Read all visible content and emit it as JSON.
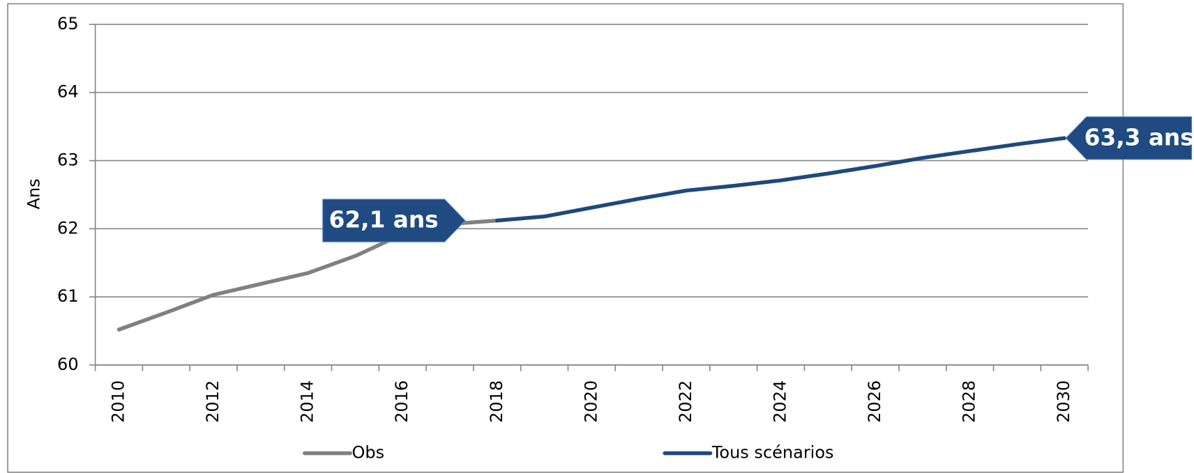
{
  "chart_data": {
    "type": "line",
    "y_label": "Ans",
    "categories": [
      "2010",
      null,
      "2012",
      null,
      "2014",
      null,
      "2016",
      null,
      "2018",
      null,
      "2020",
      null,
      "2022",
      null,
      "2024",
      null,
      "2026",
      null,
      "2028",
      null,
      "2030"
    ],
    "series": [
      {
        "name": "Obs",
        "color": "#808080",
        "values": [
          60.52,
          60.77,
          61.03,
          61.19,
          61.35,
          61.6,
          61.92,
          62.07,
          62.12,
          null,
          null,
          null,
          null,
          null,
          null,
          null,
          null,
          null,
          null,
          null,
          null
        ]
      },
      {
        "name": "Tous scénarios",
        "color": "#1f497d",
        "values": [
          null,
          null,
          null,
          null,
          null,
          null,
          null,
          null,
          62.12,
          62.18,
          62.31,
          62.44,
          62.56,
          62.63,
          62.71,
          62.81,
          62.92,
          63.04,
          63.14,
          63.24,
          63.33
        ]
      }
    ],
    "annotations": [
      {
        "text": "62,1 ans"
      },
      {
        "text": "63,3 ans"
      }
    ],
    "ylim": [
      60,
      65
    ],
    "yticks": [
      60,
      61,
      62,
      63,
      64,
      65
    ],
    "grid": true
  }
}
